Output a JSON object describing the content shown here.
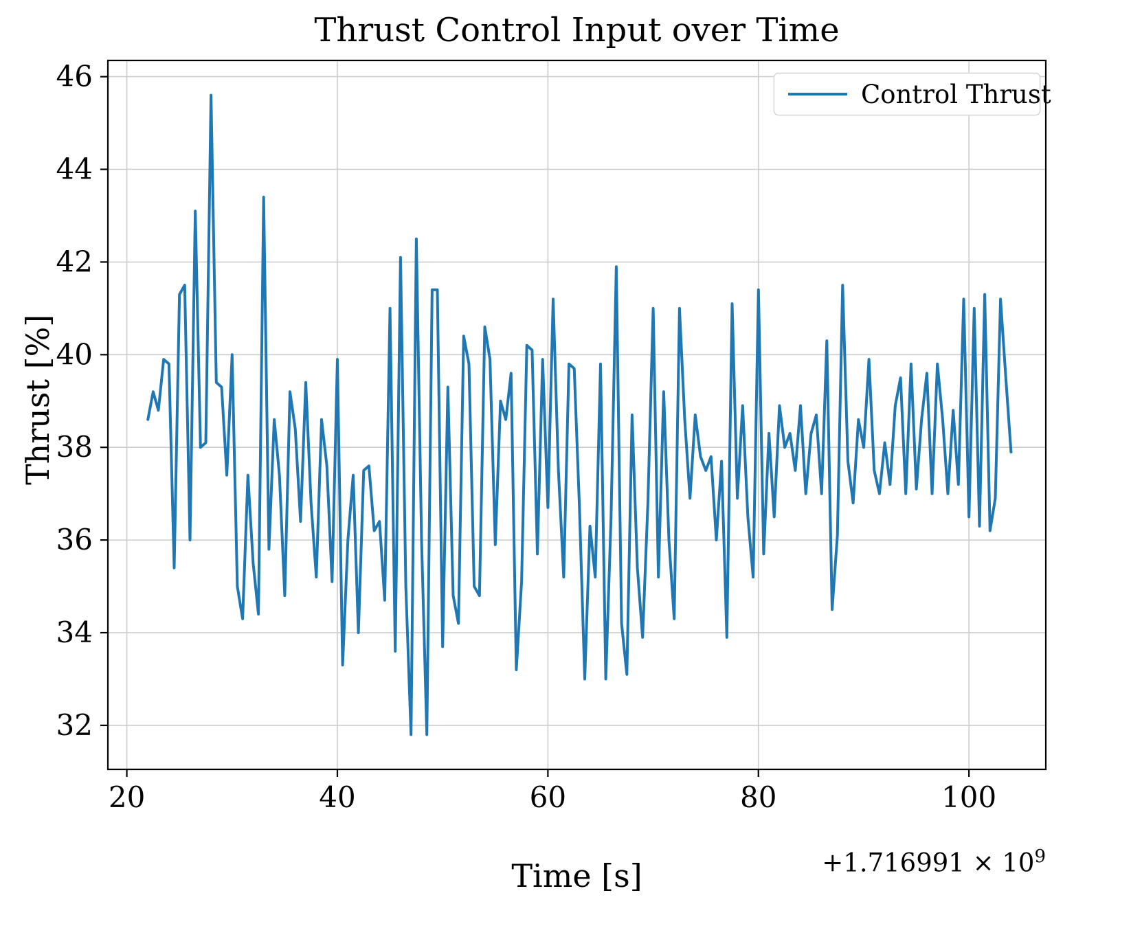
{
  "title": "Thrust Control Input over Time",
  "xlabel": "Time [s]",
  "ylabel": "Thrust [%]",
  "x_offset_text": {
    "base": "+1.716991 × 10",
    "exponent": "9"
  },
  "legend": {
    "label": "Control Thrust"
  },
  "colors": {
    "line": "#1f77b4",
    "grid": "#cccccc",
    "axis": "#000000",
    "background": "#ffffff"
  },
  "chart_data": {
    "type": "line",
    "title": "Thrust Control Input over Time",
    "xlabel": "Time [s]",
    "ylabel": "Thrust [%]",
    "x_offset": "+1.716991e9",
    "grid": true,
    "legend_position": "upper right",
    "x_ticks": [
      20,
      40,
      60,
      80,
      100
    ],
    "y_ticks": [
      32,
      34,
      36,
      38,
      40,
      42,
      44,
      46
    ],
    "xlim": [
      18.2,
      107.3
    ],
    "ylim": [
      31.05,
      46.35
    ],
    "x_start": 22.0,
    "x_step": 0.5,
    "series": [
      {
        "name": "Control Thrust",
        "values": [
          38.6,
          39.2,
          38.8,
          39.9,
          39.8,
          35.4,
          41.3,
          41.5,
          36.0,
          43.1,
          38.0,
          38.1,
          45.6,
          39.4,
          39.3,
          37.4,
          40.0,
          35.0,
          34.3,
          37.4,
          35.5,
          34.4,
          43.4,
          35.8,
          38.6,
          37.4,
          34.8,
          39.2,
          38.4,
          36.4,
          39.4,
          36.8,
          35.2,
          38.6,
          37.6,
          35.1,
          39.9,
          33.3,
          36.0,
          37.4,
          34.0,
          37.5,
          37.6,
          36.2,
          36.4,
          34.7,
          41.0,
          33.6,
          42.1,
          35.0,
          31.8,
          42.5,
          36.0,
          31.8,
          41.4,
          41.4,
          33.7,
          39.3,
          34.8,
          34.2,
          40.4,
          39.8,
          35.0,
          34.8,
          40.6,
          39.9,
          35.9,
          39.0,
          38.6,
          39.6,
          33.2,
          35.1,
          40.2,
          40.1,
          35.7,
          39.9,
          36.7,
          41.2,
          37.5,
          35.2,
          39.8,
          39.7,
          36.7,
          33.0,
          36.3,
          35.2,
          39.8,
          33.0,
          36.5,
          41.9,
          34.2,
          33.1,
          38.7,
          35.4,
          33.9,
          36.8,
          41.0,
          35.2,
          39.2,
          36.0,
          34.3,
          41.0,
          38.6,
          36.9,
          38.7,
          37.8,
          37.5,
          37.8,
          36.0,
          37.7,
          33.9,
          41.1,
          36.9,
          38.9,
          36.5,
          35.2,
          41.4,
          35.7,
          38.3,
          36.5,
          38.9,
          38.0,
          38.3,
          37.5,
          38.9,
          37.0,
          38.3,
          38.7,
          37.0,
          40.3,
          34.5,
          36.1,
          41.5,
          37.7,
          36.8,
          38.6,
          38.0,
          39.9,
          37.5,
          37.0,
          38.1,
          37.2,
          38.9,
          39.5,
          37.0,
          39.8,
          37.1,
          38.6,
          39.6,
          37.0,
          39.8,
          38.6,
          37.0,
          38.8,
          37.2,
          41.2,
          36.5,
          41.0,
          36.3,
          41.3,
          36.2,
          36.9,
          41.2,
          39.5,
          37.9
        ]
      }
    ]
  }
}
